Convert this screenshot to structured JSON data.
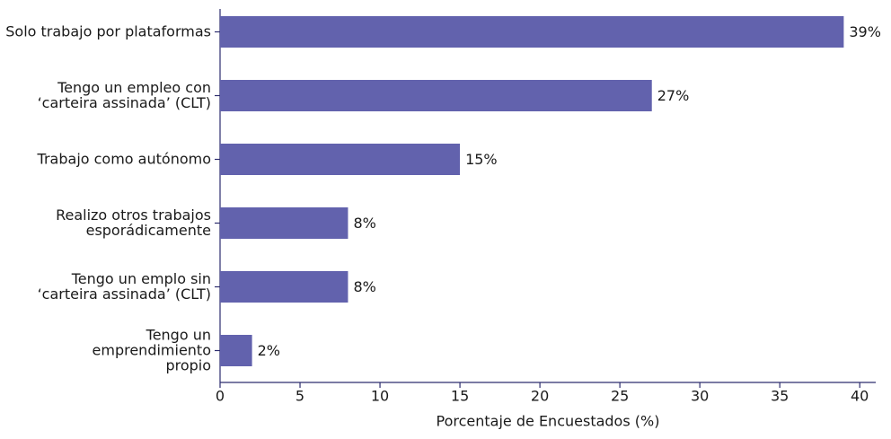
{
  "chart_data": {
    "type": "bar",
    "orientation": "horizontal",
    "categories": [
      [
        "Solo trabajo por plataformas"
      ],
      [
        "Tengo un empleo con",
        "‘carteira assinada’ (CLT)"
      ],
      [
        "Trabajo como autónomo"
      ],
      [
        "Realizo otros trabajos",
        "esporádicamente"
      ],
      [
        "Tengo un emplo sin",
        "‘carteira assinada’ (CLT)"
      ],
      [
        "Tengo un",
        "emprendimiento",
        "propio"
      ]
    ],
    "values": [
      39,
      27,
      15,
      8,
      8,
      2
    ],
    "value_labels": [
      "39%",
      "27%",
      "15%",
      "8%",
      "8%",
      "2%"
    ],
    "color": "#6262ad",
    "xlabel": "Porcentaje de Encuestados (%)",
    "xlim": [
      0,
      41
    ],
    "xticks": [
      0,
      5,
      10,
      15,
      20,
      25,
      30,
      35,
      40
    ],
    "grid": false
  }
}
